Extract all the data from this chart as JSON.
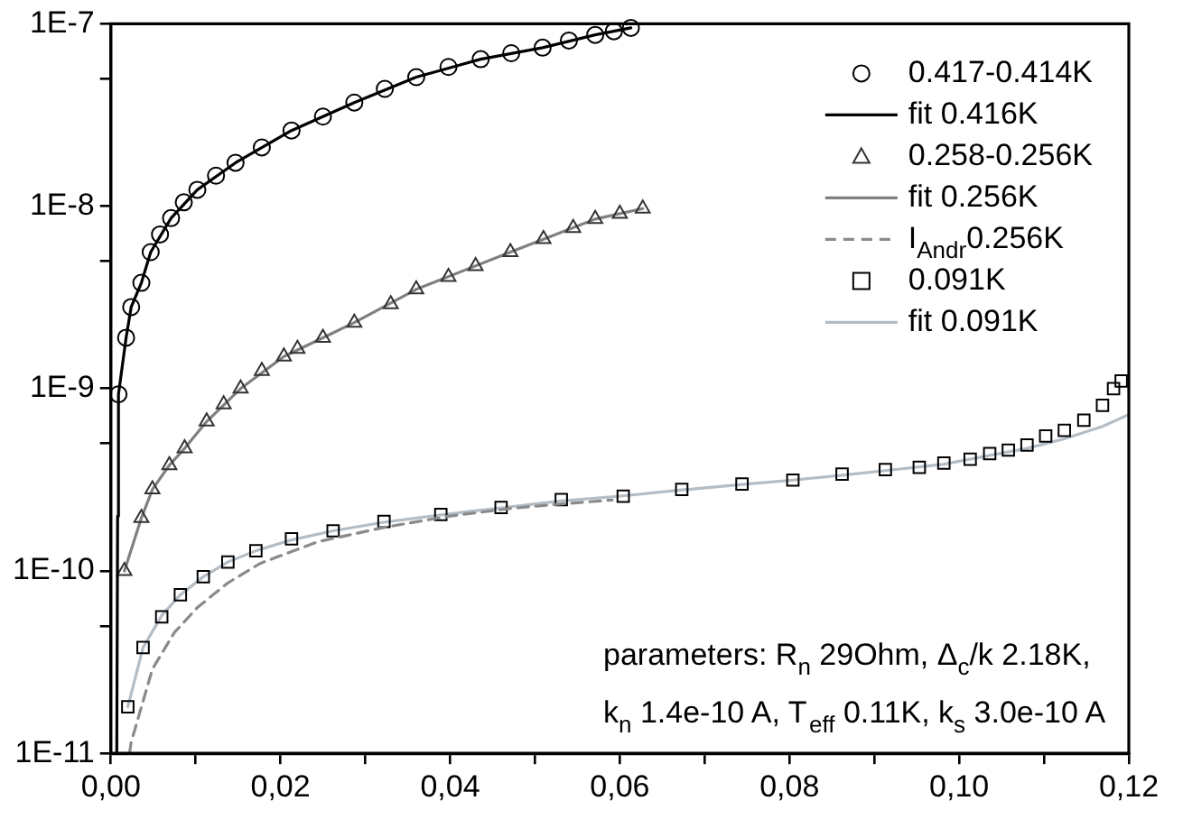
{
  "chart_data": {
    "type": "scatter",
    "log": "y",
    "legend": "top right",
    "grid": false,
    "xlim": [
      0,
      0.12
    ],
    "ylim": [
      1e-11,
      1e-07
    ],
    "xticks": [
      {
        "value": 0,
        "label": "0,00"
      },
      {
        "value": 0.01,
        "label": null
      },
      {
        "value": 0.02,
        "label": "0,02"
      },
      {
        "value": 0.03,
        "label": null
      },
      {
        "value": 0.04,
        "label": "0,04"
      },
      {
        "value": 0.05,
        "label": null
      },
      {
        "value": 0.06,
        "label": "0,06"
      },
      {
        "value": 0.07,
        "label": null
      },
      {
        "value": 0.08,
        "label": "0,08"
      },
      {
        "value": 0.09,
        "label": null
      },
      {
        "value": 0.1,
        "label": "0,10"
      },
      {
        "value": 0.11,
        "label": null
      },
      {
        "value": 0.12,
        "label": "0,12"
      }
    ],
    "yticks": [
      {
        "value": 1e-11,
        "label": "1E-11"
      },
      {
        "value": 5e-11,
        "label": null
      },
      {
        "value": 1e-10,
        "label": "1E-10"
      },
      {
        "value": 5e-10,
        "label": null
      },
      {
        "value": 1e-09,
        "label": "1E-9"
      },
      {
        "value": 5e-09,
        "label": null
      },
      {
        "value": 1e-08,
        "label": "1E-8"
      },
      {
        "value": 5e-08,
        "label": null
      },
      {
        "value": 1e-07,
        "label": "1E-7"
      }
    ],
    "annotations": [
      "parameters: R$_{n}$ 29Ohm, Δ$_{c}$/k 2.18K,",
      "k$_{n}$ 1.4e-10 A, T$_{eff}$ 0.11K, k$_{s}$ 3.0e-10 A"
    ],
    "series": [
      {
        "name": "0.417-0.414K",
        "type": "scatter",
        "marker": "circle",
        "color": "#000000",
        "x": [
          0.0009,
          0.0018,
          0.0024,
          0.0036,
          0.0047,
          0.0058,
          0.0071,
          0.0086,
          0.0102,
          0.0124,
          0.0147,
          0.0178,
          0.0213,
          0.025,
          0.0287,
          0.0323,
          0.036,
          0.0398,
          0.0436,
          0.0472,
          0.0509,
          0.054,
          0.0571,
          0.0593,
          0.0613
        ],
        "values": [
          9.3e-10,
          1.9e-09,
          2.8e-09,
          3.8e-09,
          5.6e-09,
          7e-09,
          8.6e-09,
          1.05e-08,
          1.23e-08,
          1.47e-08,
          1.73e-08,
          2.1e-08,
          2.6e-08,
          3.1e-08,
          3.7e-08,
          4.4e-08,
          5.1e-08,
          5.8e-08,
          6.4e-08,
          6.9e-08,
          7.4e-08,
          8.1e-08,
          8.7e-08,
          9.1e-08,
          9.5e-08
        ]
      },
      {
        "name": "fit 0.416K",
        "type": "line",
        "marker": "none",
        "line_style": "solid",
        "color": "#000000",
        "x": [
          0.0007,
          0.0008,
          0.0009,
          0.0018,
          0.0024,
          0.0036,
          0.0047,
          0.0071,
          0.0102,
          0.0147,
          0.0213,
          0.0287,
          0.036,
          0.0436,
          0.0509,
          0.0571,
          0.0613
        ],
        "values": [
          1e-11,
          2e-10,
          9.3e-10,
          1.9e-09,
          2.8e-09,
          3.8e-09,
          5.6e-09,
          8.6e-09,
          1.23e-08,
          1.73e-08,
          2.6e-08,
          3.7e-08,
          5.1e-08,
          6.4e-08,
          7.4e-08,
          8.7e-08,
          9.5e-08
        ]
      },
      {
        "name": "0.258-0.256K",
        "type": "scatter",
        "marker": "triangle",
        "color": "#333333",
        "x": [
          0.0016,
          0.0036,
          0.0049,
          0.0069,
          0.0087,
          0.0113,
          0.0133,
          0.0153,
          0.0178,
          0.0204,
          0.022,
          0.025,
          0.0287,
          0.033,
          0.036,
          0.0398,
          0.043,
          0.0471,
          0.051,
          0.0545,
          0.0571,
          0.06,
          0.0627
        ],
        "values": [
          1e-10,
          1.95e-10,
          2.8e-10,
          3.8e-10,
          4.7e-10,
          6.6e-10,
          8.2e-10,
          1e-09,
          1.25e-09,
          1.5e-09,
          1.65e-09,
          1.9e-09,
          2.3e-09,
          2.9e-09,
          3.5e-09,
          4.1e-09,
          4.7e-09,
          5.6e-09,
          6.6e-09,
          7.6e-09,
          8.5e-09,
          9.1e-09,
          9.7e-09
        ]
      },
      {
        "name": "fit 0.256K",
        "type": "line",
        "marker": "none",
        "line_style": "solid",
        "color": "#808080",
        "x": [
          0.0016,
          0.0036,
          0.0049,
          0.0069,
          0.0087,
          0.0113,
          0.0153,
          0.0204,
          0.025,
          0.0287,
          0.036,
          0.0471,
          0.0571,
          0.0627
        ],
        "values": [
          1e-10,
          1.95e-10,
          2.8e-10,
          3.8e-10,
          4.7e-10,
          6.6e-10,
          1e-09,
          1.5e-09,
          1.9e-09,
          2.3e-09,
          3.5e-09,
          5.6e-09,
          8.5e-09,
          9.7e-09
        ]
      },
      {
        "name": "I$_{Andr}$0.256K",
        "type": "line",
        "marker": "none",
        "line_style": "dashed",
        "color": "#8a8a8a",
        "x": [
          0.0022,
          0.0024,
          0.0049,
          0.0075,
          0.0102,
          0.0138,
          0.0176,
          0.0245,
          0.0324,
          0.04,
          0.0471,
          0.0531,
          0.0591
        ],
        "values": [
          1e-11,
          1.15e-11,
          2.9e-11,
          4.6e-11,
          6.3e-11,
          8.6e-11,
          1.1e-10,
          1.45e-10,
          1.74e-10,
          2e-10,
          2.2e-10,
          2.33e-10,
          2.45e-10
        ]
      },
      {
        "name": "0.091K",
        "type": "scatter",
        "marker": "square",
        "color": "#000000",
        "x": [
          0.002,
          0.0038,
          0.006,
          0.0082,
          0.0109,
          0.0138,
          0.0171,
          0.0213,
          0.0262,
          0.0322,
          0.0389,
          0.046,
          0.0531,
          0.0604,
          0.0673,
          0.0744,
          0.0804,
          0.0862,
          0.0913,
          0.0953,
          0.0982,
          0.1013,
          0.1036,
          0.1058,
          0.108,
          0.1102,
          0.1124,
          0.1147,
          0.1169,
          0.1182,
          0.1191
        ],
        "values": [
          1.8e-11,
          3.8e-11,
          5.6e-11,
          7.4e-11,
          9.3e-11,
          1.12e-10,
          1.29e-10,
          1.5e-10,
          1.66e-10,
          1.87e-10,
          2.04e-10,
          2.23e-10,
          2.46e-10,
          2.57e-10,
          2.8e-10,
          3e-10,
          3.15e-10,
          3.4e-10,
          3.6e-10,
          3.7e-10,
          3.9e-10,
          4.1e-10,
          4.4e-10,
          4.6e-10,
          4.9e-10,
          5.5e-10,
          5.9e-10,
          6.7e-10,
          8.1e-10,
          1e-09,
          1.1e-09
        ]
      },
      {
        "name": "fit 0.091K",
        "type": "line",
        "marker": "none",
        "line_style": "solid",
        "color": "#b4bcc4",
        "x": [
          0.002,
          0.0038,
          0.006,
          0.0082,
          0.0109,
          0.0138,
          0.0171,
          0.0213,
          0.0262,
          0.0322,
          0.0389,
          0.046,
          0.0531,
          0.0604,
          0.0673,
          0.0744,
          0.0804,
          0.0862,
          0.0913,
          0.0982,
          0.1036,
          0.108,
          0.1124,
          0.1169,
          0.12
        ],
        "values": [
          1.8e-11,
          3.8e-11,
          5.7e-11,
          7.4e-11,
          9.3e-11,
          1.12e-10,
          1.29e-10,
          1.48e-10,
          1.66e-10,
          1.85e-10,
          2.03e-10,
          2.22e-10,
          2.42e-10,
          2.58e-10,
          2.78e-10,
          2.98e-10,
          3.15e-10,
          3.35e-10,
          3.55e-10,
          3.85e-10,
          4.3e-10,
          4.7e-10,
          5.3e-10,
          6.2e-10,
          7.2e-10
        ]
      }
    ]
  }
}
